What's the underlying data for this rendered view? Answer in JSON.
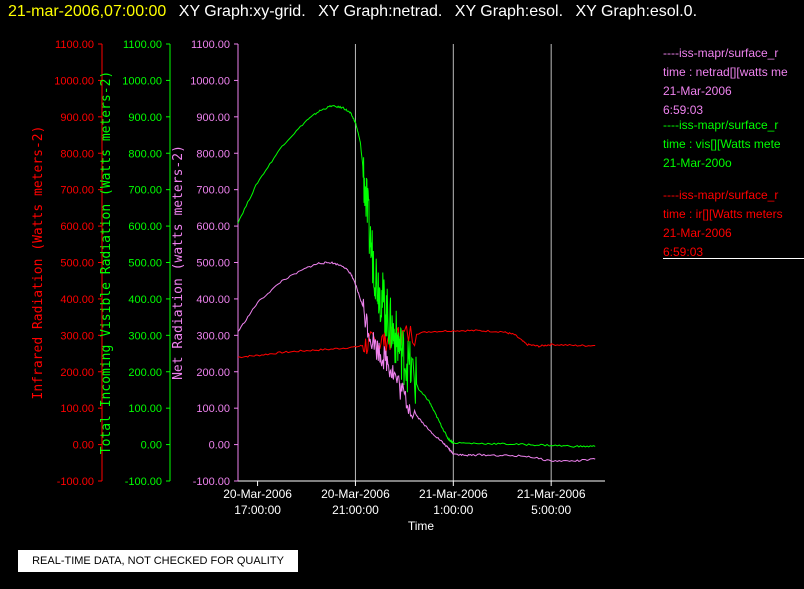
{
  "header": {
    "timestamp": "21-mar-2006,07:00:00",
    "graphs": [
      "XY Graph:xy-grid.",
      "XY Graph:netrad.",
      "XY Graph:esol.",
      "XY Graph:esol.0."
    ],
    "timestamp_color": "#ffff00",
    "graphs_color": "#ffffff"
  },
  "legend": [
    {
      "color": "#ee82ee",
      "lines": [
        "----iss-mapr/surface_r",
        "time : netrad[][watts me",
        "21-Mar-2006",
        "6:59:03"
      ]
    },
    {
      "color": "#00ff00",
      "lines": [
        "----iss-mapr/surface_r",
        "time : vis[][Watts mete",
        "21-Mar-200o"
      ]
    },
    {
      "color": "#ff0000",
      "lines": [
        "----iss-mapr/surface_r",
        "time : ir[][Watts meters",
        "21-Mar-2006",
        "6:59:03"
      ]
    }
  ],
  "notice": "REAL-TIME DATA, NOT CHECKED FOR QUALITY",
  "chart_data": {
    "type": "line",
    "xlabel": "Time",
    "x_ticks": [
      {
        "date": "20-Mar-2006",
        "time": "17:00:00",
        "hours": 17
      },
      {
        "date": "20-Mar-2006",
        "time": "21:00:00",
        "hours": 21
      },
      {
        "date": "21-Mar-2006",
        "time": "1:00:00",
        "hours": 25
      },
      {
        "date": "21-Mar-2006",
        "time": "5:00:00",
        "hours": 29
      }
    ],
    "xlim_hours": [
      16.2,
      31.2
    ],
    "vertical_grid_hours": [
      21,
      25,
      29
    ],
    "y_ticks": [
      "-100.00",
      "0.00",
      "100.00",
      "200.00",
      "300.00",
      "400.00",
      "500.00",
      "600.00",
      "700.00",
      "800.00",
      "900.00",
      "1000.00",
      "1100.00"
    ],
    "ylim": [
      -100,
      1100
    ],
    "axes": [
      {
        "label": "Infrared Radiation (Watts meters-2)",
        "color": "#ff0000"
      },
      {
        "label": "Total Incoming Visible Radiation (Watts meters-2)",
        "color": "#00ff00"
      },
      {
        "label": "Net Radiation (watts meters-2)",
        "color": "#ee82ee"
      }
    ],
    "grid": "vertical only",
    "series": [
      {
        "color": "#ff0000",
        "x": [
          16.2,
          17,
          18,
          19,
          20,
          21,
          21.5,
          22,
          22.5,
          23,
          24,
          25,
          26,
          27,
          27.5,
          28,
          28.5,
          29,
          30,
          30.8
        ],
        "y": [
          240,
          245,
          253,
          258,
          262,
          268,
          275,
          283,
          290,
          300,
          310,
          313,
          313,
          310,
          302,
          275,
          270,
          275,
          272,
          272
        ]
      },
      {
        "color": "#00ff00",
        "x": [
          16.2,
          17,
          18,
          19,
          19.5,
          20,
          20.5,
          20.8,
          21,
          21.2,
          21.4,
          21.6,
          21.8,
          22,
          22.2,
          22.4,
          22.6,
          22.8,
          23,
          23.3,
          23.6,
          24,
          24.3,
          24.6,
          24.8,
          25,
          26,
          27,
          28,
          29,
          30,
          30.8
        ],
        "y": [
          610,
          720,
          820,
          890,
          915,
          930,
          925,
          910,
          885,
          830,
          700,
          560,
          480,
          420,
          380,
          330,
          300,
          270,
          240,
          200,
          150,
          120,
          80,
          40,
          15,
          5,
          3,
          2,
          0,
          -2,
          -5,
          -5
        ]
      },
      {
        "color": "#ee82ee",
        "x": [
          16.2,
          17,
          18,
          19,
          19.5,
          20,
          20.5,
          20.8,
          21,
          21.3,
          21.6,
          22,
          22.3,
          22.6,
          23,
          23.5,
          24,
          24.5,
          24.8,
          25,
          25.5,
          26,
          27,
          28,
          29,
          30,
          30.8
        ],
        "y": [
          310,
          390,
          450,
          485,
          498,
          500,
          490,
          470,
          440,
          380,
          300,
          250,
          230,
          190,
          130,
          80,
          40,
          10,
          -10,
          -25,
          -30,
          -28,
          -30,
          -32,
          -45,
          -45,
          -40
        ]
      }
    ]
  }
}
